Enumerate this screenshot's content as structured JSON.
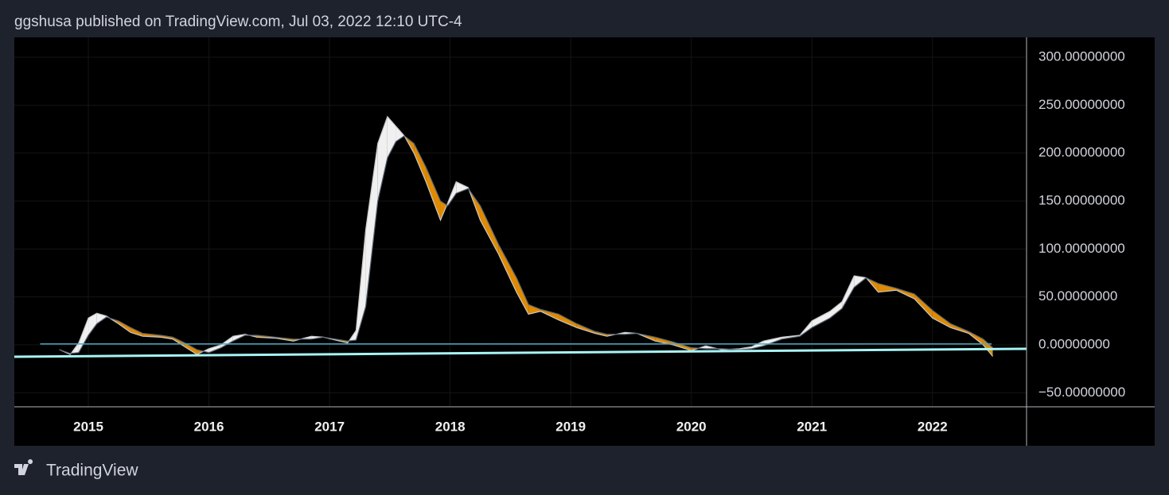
{
  "header": "ggshusa published on TradingView.com, Jul 03, 2022 12:10 UTC-4",
  "brand": "TradingView",
  "chart_data": {
    "type": "ribbon",
    "x": [
      2014.76,
      2014.85,
      2014.92,
      2015.0,
      2015.07,
      2015.15,
      2015.25,
      2015.35,
      2015.45,
      2015.6,
      2015.7,
      2015.8,
      2015.9,
      2016.0,
      2016.1,
      2016.2,
      2016.3,
      2016.4,
      2016.55,
      2016.7,
      2016.85,
      2016.95,
      2017.05,
      2017.15,
      2017.22,
      2017.3,
      2017.4,
      2017.48,
      2017.55,
      2017.62,
      2017.7,
      2017.8,
      2017.92,
      2017.98,
      2018.05,
      2018.15,
      2018.25,
      2018.4,
      2018.55,
      2018.65,
      2018.75,
      2018.9,
      2019.05,
      2019.2,
      2019.3,
      2019.45,
      2019.55,
      2019.7,
      2019.85,
      2020.0,
      2020.12,
      2020.25,
      2020.4,
      2020.5,
      2020.6,
      2020.75,
      2020.9,
      2021.0,
      2021.15,
      2021.25,
      2021.35,
      2021.45,
      2021.55,
      2021.7,
      2021.85,
      2022.0,
      2022.15,
      2022.3,
      2022.42,
      2022.5
    ],
    "series": [
      {
        "color": "#c8c8c8",
        "values": [
          -5,
          -10,
          2,
          28,
          33,
          30,
          22,
          13,
          9,
          8,
          6,
          -2,
          -10,
          -4,
          0,
          9,
          11,
          8,
          7,
          4,
          9,
          8,
          5,
          2,
          15,
          120,
          210,
          238,
          228,
          218,
          200,
          170,
          130,
          148,
          170,
          164,
          130,
          95,
          55,
          32,
          35,
          26,
          18,
          12,
          9,
          13,
          12,
          4,
          0,
          -6,
          -1,
          -5,
          -4,
          -2,
          4,
          8,
          10,
          25,
          35,
          45,
          72,
          70,
          55,
          57,
          48,
          28,
          18,
          12,
          0,
          -12
        ]
      },
      {
        "color": "#5a6675",
        "values": [
          -5,
          -9,
          -8,
          10,
          22,
          29,
          25,
          18,
          12,
          10,
          8,
          2,
          -5,
          -8,
          -3,
          4,
          10,
          10,
          8,
          6,
          6,
          8,
          6,
          4,
          5,
          40,
          150,
          195,
          212,
          218,
          210,
          185,
          150,
          145,
          158,
          163,
          145,
          105,
          70,
          42,
          37,
          32,
          22,
          14,
          11,
          11,
          12,
          8,
          3,
          -3,
          -4,
          -4,
          -5,
          -4,
          -1,
          6,
          9,
          18,
          28,
          38,
          60,
          70,
          64,
          59,
          53,
          36,
          22,
          14,
          6,
          -3
        ]
      }
    ],
    "fill_up_color": "#f0f0f0",
    "fill_down_color": "#e08a00",
    "lines": [
      {
        "color": "#4fa8c0",
        "x": [
          2014.6,
          2022.49
        ],
        "values": [
          1,
          1
        ]
      },
      {
        "color": "#a8f4f4",
        "x": [
          2014.386,
          2022.78
        ],
        "values": [
          -12.4,
          -4.1
        ]
      }
    ],
    "xlim": [
      2014.386,
      2022.78
    ],
    "xticks": [
      2015,
      2016,
      2017,
      2018,
      2019,
      2020,
      2021,
      2022
    ],
    "ylim": [
      -64.6,
      320.7
    ],
    "yticks": [
      {
        "value": 300,
        "label": "300.00000000"
      },
      {
        "value": 250,
        "label": "250.00000000"
      },
      {
        "value": 200,
        "label": "200.00000000"
      },
      {
        "value": 150,
        "label": "150.00000000"
      },
      {
        "value": 100,
        "label": "100.00000000"
      },
      {
        "value": 50,
        "label": "50.00000000"
      },
      {
        "value": 0,
        "label": "0.00000000"
      },
      {
        "value": -50,
        "label": "−50.00000000"
      }
    ],
    "grid": true
  }
}
